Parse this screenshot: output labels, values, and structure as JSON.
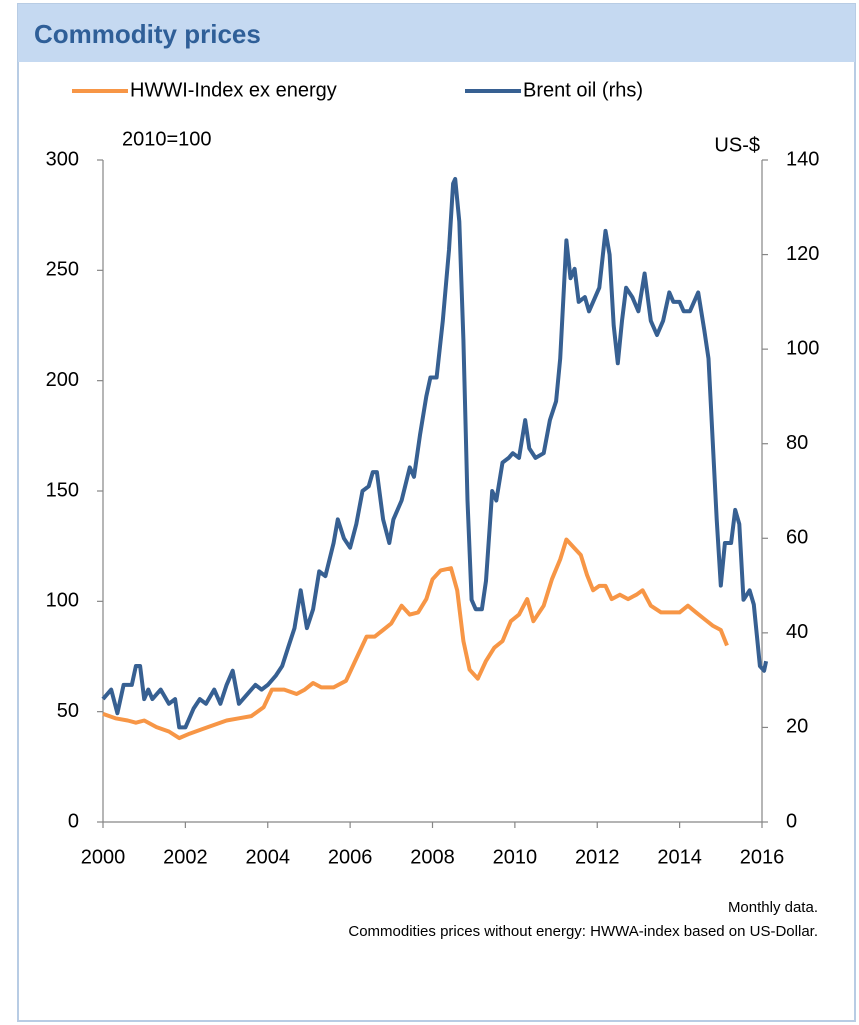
{
  "chart_data": {
    "type": "line",
    "title": "Commodity prices",
    "y_label": "2010=100",
    "y2_label": "US-$",
    "notes": [
      "Monthly data.",
      "Commodities prices without energy: HWWA-index based on US-Dollar."
    ],
    "xlim": [
      2000,
      2016
    ],
    "xticks": [
      2000,
      2002,
      2004,
      2006,
      2008,
      2010,
      2012,
      2014,
      2016
    ],
    "ylim": [
      0,
      300
    ],
    "yticks": [
      0,
      50,
      100,
      150,
      200,
      250,
      300
    ],
    "y2lim": [
      0,
      140
    ],
    "y2ticks": [
      0,
      20,
      40,
      60,
      80,
      100,
      120,
      140
    ],
    "legend": "top",
    "series": [
      {
        "name": "HWWI-Index ex energy",
        "color": "#f79646",
        "x": [
          2000.0,
          2000.3,
          2000.6,
          2000.8,
          2001.0,
          2001.3,
          2001.6,
          2001.85,
          2002.1,
          2002.4,
          2002.7,
          2003.0,
          2003.3,
          2003.6,
          2003.9,
          2004.1,
          2004.4,
          2004.7,
          2004.9,
          2005.1,
          2005.3,
          2005.6,
          2005.9,
          2006.1,
          2006.4,
          2006.6,
          2006.8,
          2007.0,
          2007.25,
          2007.45,
          2007.65,
          2007.85,
          2008.0,
          2008.2,
          2008.45,
          2008.6,
          2008.75,
          2008.9,
          2009.1,
          2009.3,
          2009.5,
          2009.7,
          2009.9,
          2010.1,
          2010.3,
          2010.45,
          2010.7,
          2010.9,
          2011.1,
          2011.25,
          2011.45,
          2011.6,
          2011.75,
          2011.9,
          2012.05,
          2012.2,
          2012.35,
          2012.55,
          2012.75,
          2012.95,
          2013.1,
          2013.3,
          2013.55,
          2013.8,
          2014.0,
          2014.2,
          2014.4,
          2014.6,
          2014.8,
          2015.0,
          2015.15
        ],
        "values": [
          49,
          47,
          46,
          45,
          46,
          43,
          41,
          38,
          40,
          42,
          44,
          46,
          47,
          48,
          52,
          60,
          60,
          58,
          60,
          63,
          61,
          61,
          64,
          72,
          84,
          84,
          87,
          90,
          98,
          94,
          95,
          101,
          110,
          114,
          115,
          105,
          82,
          69,
          65,
          73,
          79,
          82,
          91,
          94,
          101,
          91,
          98,
          110,
          119,
          128,
          124,
          121,
          112,
          105,
          107,
          107,
          101,
          103,
          101,
          103,
          105,
          98,
          95,
          95,
          95,
          98,
          95,
          92,
          89,
          87,
          80
        ]
      },
      {
        "name": "Brent oil (rhs)",
        "color": "#376092",
        "axis": "y2",
        "x": [
          2000.0,
          2000.2,
          2000.35,
          2000.5,
          2000.7,
          2000.8,
          2000.9,
          2001.0,
          2001.1,
          2001.2,
          2001.4,
          2001.6,
          2001.75,
          2001.85,
          2002.0,
          2002.2,
          2002.35,
          2002.5,
          2002.7,
          2002.85,
          2003.0,
          2003.15,
          2003.3,
          2003.5,
          2003.7,
          2003.85,
          2004.0,
          2004.2,
          2004.35,
          2004.5,
          2004.65,
          2004.8,
          2004.95,
          2005.1,
          2005.25,
          2005.4,
          2005.6,
          2005.7,
          2005.85,
          2006.0,
          2006.15,
          2006.3,
          2006.45,
          2006.55,
          2006.65,
          2006.8,
          2006.95,
          2007.05,
          2007.25,
          2007.45,
          2007.55,
          2007.7,
          2007.85,
          2007.95,
          2008.1,
          2008.25,
          2008.4,
          2008.5,
          2008.55,
          2008.65,
          2008.75,
          2008.85,
          2008.95,
          2009.05,
          2009.2,
          2009.3,
          2009.45,
          2009.55,
          2009.7,
          2009.85,
          2009.95,
          2010.1,
          2010.25,
          2010.35,
          2010.5,
          2010.7,
          2010.85,
          2011.0,
          2011.1,
          2011.25,
          2011.35,
          2011.45,
          2011.55,
          2011.7,
          2011.8,
          2011.9,
          2012.05,
          2012.2,
          2012.3,
          2012.4,
          2012.5,
          2012.6,
          2012.7,
          2012.85,
          2013.0,
          2013.15,
          2013.3,
          2013.45,
          2013.6,
          2013.75,
          2013.85,
          2014.0,
          2014.1,
          2014.25,
          2014.45,
          2014.6,
          2014.7,
          2014.8,
          2014.9,
          2015.0,
          2015.1,
          2015.25,
          2015.35,
          2015.45,
          2015.55,
          2015.7,
          2015.8,
          2015.95,
          2016.05,
          2016.1
        ],
        "values": [
          26,
          28,
          23,
          29,
          29,
          33,
          33,
          26,
          28,
          26,
          28,
          25,
          26,
          20,
          20,
          24,
          26,
          25,
          28,
          25,
          29,
          32,
          25,
          27,
          29,
          28,
          29,
          31,
          33,
          37,
          41,
          49,
          41,
          45,
          53,
          52,
          59,
          64,
          60,
          58,
          63,
          70,
          71,
          74,
          74,
          64,
          59,
          64,
          68,
          75,
          73,
          82,
          90,
          94,
          94,
          106,
          121,
          135,
          136,
          127,
          102,
          68,
          47,
          45,
          45,
          51,
          70,
          68,
          76,
          77,
          78,
          77,
          85,
          79,
          77,
          78,
          85,
          89,
          98,
          123,
          115,
          117,
          110,
          111,
          108,
          110,
          113,
          125,
          120,
          105,
          97,
          106,
          113,
          111,
          108,
          116,
          106,
          103,
          106,
          112,
          110,
          110,
          108,
          108,
          112,
          104,
          98,
          81,
          64,
          50,
          59,
          59,
          66,
          63,
          47,
          49,
          46,
          33,
          32,
          34
        ]
      }
    ]
  }
}
